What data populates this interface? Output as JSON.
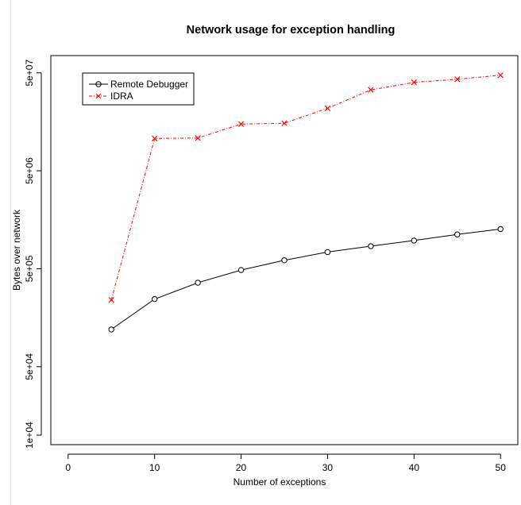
{
  "chart_data": {
    "type": "line",
    "title": "Network usage for exception handling",
    "xlabel": "Number of exceptions",
    "ylabel": "Bytes over network",
    "x": [
      5,
      10,
      15,
      20,
      25,
      30,
      35,
      40,
      45,
      50
    ],
    "xlim": [
      -2,
      52
    ],
    "ylim": [
      8000,
      75000000
    ],
    "yscale": "log",
    "x_ticks": [
      0,
      10,
      20,
      30,
      40,
      50
    ],
    "x_tick_labels": [
      "0",
      "10",
      "20",
      "30",
      "40",
      "50"
    ],
    "y_ticks": [
      10000,
      50000,
      500000,
      5000000,
      50000000
    ],
    "y_tick_labels": [
      "1e+04",
      "5e+04",
      "5e+05",
      "5e+06",
      "5e+07"
    ],
    "grid": false,
    "legend_position": "top-left",
    "series": [
      {
        "name": "Remote Debugger",
        "values": [
          120000,
          245000,
          360000,
          485000,
          610000,
          740000,
          850000,
          970000,
          1120000,
          1270000
        ],
        "color": "#000000",
        "marker": "circle",
        "line_style": "solid"
      },
      {
        "name": "IDRA",
        "values": [
          240000,
          10700000,
          10800000,
          15000000,
          15300000,
          21700000,
          33500000,
          40000000,
          43000000,
          47300000
        ],
        "color": "#ff0000",
        "marker": "cross",
        "line_style": "dashed"
      }
    ]
  }
}
